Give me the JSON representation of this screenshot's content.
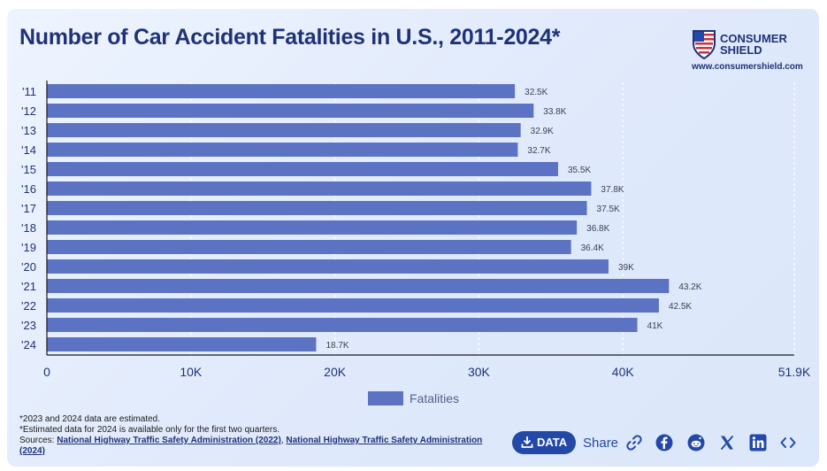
{
  "header": {
    "title": "Number of Car Accident Fatalities in U.S., 2011-2024*",
    "brand_line1": "CONSUMER",
    "brand_line2": "SHIELD",
    "brand_url": "www.consumershield.com"
  },
  "chart_data": {
    "type": "bar",
    "orientation": "horizontal",
    "title": "Number of Car Accident Fatalities in U.S., 2011-2024*",
    "categories": [
      "'11",
      "'12",
      "'13",
      "'14",
      "'15",
      "'16",
      "'17",
      "'18",
      "'19",
      "'20",
      "'21",
      "'22",
      "'23",
      "'24"
    ],
    "series": [
      {
        "name": "Fatalities",
        "values": [
          32500,
          33800,
          32900,
          32700,
          35500,
          37800,
          37500,
          36800,
          36400,
          39000,
          43200,
          42500,
          41000,
          18700
        ],
        "data_labels": [
          "32.5K",
          "33.8K",
          "32.9K",
          "32.7K",
          "35.5K",
          "37.8K",
          "37.5K",
          "36.8K",
          "36.4K",
          "39K",
          "43.2K",
          "42.5K",
          "41K",
          "18.7K"
        ],
        "color": "#5c73c4"
      }
    ],
    "x_ticks": [
      {
        "value": 0,
        "label": "0"
      },
      {
        "value": 10000,
        "label": "10K"
      },
      {
        "value": 20000,
        "label": "20K"
      },
      {
        "value": 30000,
        "label": "30K"
      },
      {
        "value": 40000,
        "label": "40K"
      },
      {
        "value": 51900,
        "label": "51.9K"
      }
    ],
    "xlim": [
      0,
      51900
    ],
    "grid": true,
    "legend_position": "bottom-center"
  },
  "legend": {
    "label": "Fatalities"
  },
  "footer": {
    "note1": "*2023 and 2024 data are estimated.",
    "note2": "*Estimated data for 2024 is available only for the first two quarters.",
    "sources_prefix": "Sources: ",
    "source1": "National Highway Traffic Safety Administration (2022)",
    "separator": ", ",
    "source2": "National Highway Traffic Safety Administration (2024)"
  },
  "toolbar": {
    "data_label": "DATA",
    "share_label": "Share",
    "icons": [
      "download-icon",
      "link-icon",
      "facebook-icon",
      "reddit-icon",
      "x-icon",
      "linkedin-icon",
      "embed-icon"
    ]
  },
  "colors": {
    "bar": "#5c73c4",
    "title": "#1f3277",
    "accent": "#2348a8",
    "background": "#e4edfc"
  }
}
